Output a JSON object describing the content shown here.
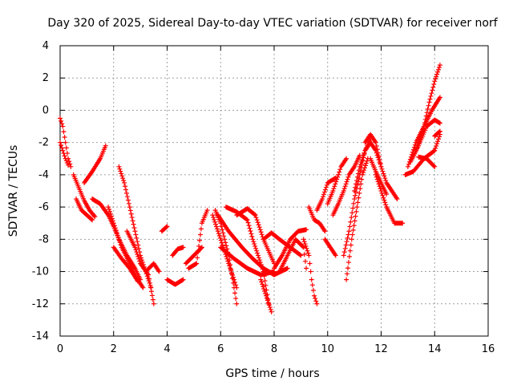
{
  "chart_data": {
    "type": "scatter",
    "title": "Day 320 of 2025, Sidereal Day-to-day VTEC variation (SDTVAR) for receiver norf",
    "xlabel": "GPS time / hours",
    "ylabel": "SDTVAR / TECUs",
    "xlim": [
      0,
      16
    ],
    "ylim": [
      -14,
      4
    ],
    "xticks": [
      "0",
      "2",
      "4",
      "6",
      "8",
      "10",
      "12",
      "14",
      "16"
    ],
    "yticks": [
      "4",
      "2",
      "0",
      "-2",
      "-4",
      "-6",
      "-8",
      "-10",
      "-12",
      "-14"
    ],
    "grid": true,
    "marker": "plus",
    "color": "#ff0000",
    "tracks": [
      [
        [
          0.0,
          -0.5
        ],
        [
          0.1,
          -1.0
        ],
        [
          0.2,
          -2.0
        ],
        [
          0.3,
          -3.0
        ],
        [
          0.4,
          -3.5
        ]
      ],
      [
        [
          0.0,
          -2.0
        ],
        [
          0.1,
          -2.5
        ],
        [
          0.2,
          -3.0
        ],
        [
          0.3,
          -3.4
        ]
      ],
      [
        [
          0.5,
          -4.0
        ],
        [
          0.7,
          -4.8
        ],
        [
          0.9,
          -5.6
        ],
        [
          1.1,
          -6.2
        ],
        [
          1.3,
          -6.6
        ]
      ],
      [
        [
          0.6,
          -5.5
        ],
        [
          0.8,
          -6.2
        ],
        [
          1.0,
          -6.5
        ],
        [
          1.2,
          -6.8
        ]
      ],
      [
        [
          0.9,
          -4.5
        ],
        [
          1.2,
          -3.8
        ],
        [
          1.5,
          -3.0
        ],
        [
          1.7,
          -2.2
        ]
      ],
      [
        [
          1.2,
          -5.5
        ],
        [
          1.5,
          -5.8
        ],
        [
          1.8,
          -6.5
        ],
        [
          2.0,
          -7.2
        ],
        [
          2.2,
          -8.0
        ],
        [
          2.5,
          -9.0
        ],
        [
          2.8,
          -9.8
        ],
        [
          3.0,
          -10.5
        ]
      ],
      [
        [
          1.8,
          -6.0
        ],
        [
          2.0,
          -7.0
        ],
        [
          2.3,
          -8.5
        ],
        [
          2.6,
          -9.5
        ],
        [
          2.9,
          -10.5
        ],
        [
          3.1,
          -11.0
        ]
      ],
      [
        [
          2.0,
          -8.5
        ],
        [
          2.3,
          -9.2
        ],
        [
          2.6,
          -9.8
        ],
        [
          2.9,
          -10.6
        ]
      ],
      [
        [
          2.2,
          -3.5
        ],
        [
          2.4,
          -4.5
        ],
        [
          2.6,
          -6.0
        ],
        [
          2.8,
          -7.5
        ],
        [
          3.0,
          -9.0
        ],
        [
          3.2,
          -10.0
        ],
        [
          3.4,
          -11.0
        ]
      ],
      [
        [
          2.5,
          -7.5
        ],
        [
          2.8,
          -8.5
        ],
        [
          3.0,
          -9.5
        ],
        [
          3.3,
          -10.2
        ],
        [
          3.5,
          -12.0
        ]
      ],
      [
        [
          3.2,
          -10.0
        ],
        [
          3.5,
          -9.5
        ],
        [
          3.7,
          -10.0
        ]
      ],
      [
        [
          3.8,
          -7.5
        ],
        [
          4.0,
          -7.2
        ]
      ],
      [
        [
          4.0,
          -10.5
        ],
        [
          4.3,
          -10.8
        ],
        [
          4.6,
          -10.5
        ]
      ],
      [
        [
          4.2,
          -9.0
        ],
        [
          4.4,
          -8.6
        ],
        [
          4.6,
          -8.5
        ]
      ],
      [
        [
          4.7,
          -9.5
        ],
        [
          5.0,
          -9.0
        ],
        [
          5.3,
          -8.5
        ]
      ],
      [
        [
          4.8,
          -9.8
        ],
        [
          5.1,
          -9.5
        ],
        [
          5.3,
          -7.0
        ],
        [
          5.5,
          -6.2
        ]
      ],
      [
        [
          5.7,
          -6.5
        ],
        [
          5.9,
          -7.5
        ],
        [
          6.1,
          -8.5
        ],
        [
          6.3,
          -9.5
        ],
        [
          6.5,
          -10.5
        ],
        [
          6.6,
          -11.0
        ]
      ],
      [
        [
          5.8,
          -6.2
        ],
        [
          6.0,
          -7.0
        ],
        [
          6.3,
          -9.0
        ],
        [
          6.5,
          -11.0
        ],
        [
          6.6,
          -12.0
        ]
      ],
      [
        [
          5.9,
          -6.5
        ],
        [
          6.3,
          -7.5
        ],
        [
          6.8,
          -8.5
        ],
        [
          7.2,
          -9.2
        ],
        [
          7.6,
          -9.8
        ],
        [
          8.0,
          -10.2
        ],
        [
          8.5,
          -9.8
        ]
      ],
      [
        [
          6.0,
          -8.5
        ],
        [
          6.5,
          -9.2
        ],
        [
          7.0,
          -9.8
        ],
        [
          7.5,
          -10.2
        ],
        [
          8.0,
          -10.0
        ]
      ],
      [
        [
          6.2,
          -6.0
        ],
        [
          6.6,
          -6.3
        ],
        [
          7.0,
          -6.8
        ],
        [
          7.2,
          -8.0
        ],
        [
          7.4,
          -9.0
        ],
        [
          7.6,
          -10.0
        ],
        [
          7.8,
          -12.0
        ]
      ],
      [
        [
          6.6,
          -6.5
        ],
        [
          7.0,
          -6.1
        ],
        [
          7.3,
          -6.5
        ],
        [
          7.6,
          -8.0
        ],
        [
          8.0,
          -9.5
        ]
      ],
      [
        [
          7.5,
          -10.5
        ],
        [
          7.7,
          -11.5
        ],
        [
          7.9,
          -12.5
        ]
      ],
      [
        [
          7.6,
          -8.0
        ],
        [
          7.9,
          -7.6
        ],
        [
          8.2,
          -8.0
        ],
        [
          8.6,
          -8.5
        ],
        [
          9.0,
          -9.0
        ]
      ],
      [
        [
          8.0,
          -9.8
        ],
        [
          8.3,
          -9.0
        ],
        [
          8.6,
          -8.0
        ],
        [
          8.9,
          -7.5
        ],
        [
          9.2,
          -7.4
        ]
      ],
      [
        [
          8.2,
          -10.0
        ],
        [
          8.5,
          -9.0
        ],
        [
          8.8,
          -8.0
        ],
        [
          9.1,
          -8.5
        ],
        [
          9.2,
          -9.8
        ]
      ],
      [
        [
          9.1,
          -8.0
        ],
        [
          9.3,
          -9.0
        ],
        [
          9.4,
          -10.5
        ],
        [
          9.5,
          -11.5
        ],
        [
          9.6,
          -12.0
        ]
      ],
      [
        [
          9.3,
          -6.0
        ],
        [
          9.5,
          -6.8
        ],
        [
          9.7,
          -7.0
        ],
        [
          9.9,
          -7.5
        ]
      ],
      [
        [
          9.6,
          -6.2
        ],
        [
          9.8,
          -5.5
        ],
        [
          10.0,
          -4.5
        ],
        [
          10.3,
          -4.2
        ]
      ],
      [
        [
          9.9,
          -8.0
        ],
        [
          10.1,
          -8.5
        ],
        [
          10.3,
          -9.0
        ]
      ],
      [
        [
          10.0,
          -5.8
        ],
        [
          10.2,
          -5.0
        ],
        [
          10.4,
          -4.0
        ],
        [
          10.5,
          -3.5
        ],
        [
          10.7,
          -3.0
        ]
      ],
      [
        [
          10.2,
          -6.5
        ],
        [
          10.4,
          -5.8
        ],
        [
          10.6,
          -5.0
        ],
        [
          10.8,
          -4.0
        ],
        [
          11.0,
          -3.5
        ],
        [
          11.2,
          -2.8
        ]
      ],
      [
        [
          10.6,
          -9.0
        ],
        [
          10.8,
          -7.5
        ],
        [
          11.0,
          -5.5
        ],
        [
          11.2,
          -4.0
        ],
        [
          11.4,
          -2.5
        ],
        [
          11.6,
          -1.8
        ]
      ],
      [
        [
          10.7,
          -10.5
        ],
        [
          10.9,
          -8.0
        ],
        [
          11.1,
          -6.0
        ],
        [
          11.3,
          -4.0
        ],
        [
          11.5,
          -3.0
        ]
      ],
      [
        [
          11.0,
          -5.0
        ],
        [
          11.2,
          -3.5
        ],
        [
          11.4,
          -2.5
        ],
        [
          11.6,
          -2.0
        ],
        [
          11.8,
          -2.5
        ],
        [
          12.0,
          -3.5
        ]
      ],
      [
        [
          11.4,
          -2.0
        ],
        [
          11.6,
          -1.5
        ],
        [
          11.8,
          -2.0
        ],
        [
          12.0,
          -3.5
        ],
        [
          12.2,
          -4.5
        ],
        [
          12.4,
          -5.0
        ],
        [
          12.6,
          -5.5
        ]
      ],
      [
        [
          11.6,
          -3.0
        ],
        [
          11.8,
          -3.8
        ],
        [
          12.0,
          -4.5
        ],
        [
          12.2,
          -5.2
        ]
      ],
      [
        [
          11.8,
          -4.0
        ],
        [
          12.0,
          -5.0
        ],
        [
          12.2,
          -6.0
        ],
        [
          12.5,
          -7.0
        ],
        [
          12.8,
          -7.0
        ]
      ],
      [
        [
          12.9,
          -4.0
        ],
        [
          13.2,
          -3.8
        ],
        [
          13.6,
          -3.0
        ],
        [
          14.0,
          -2.5
        ],
        [
          14.2,
          -1.5
        ]
      ],
      [
        [
          13.0,
          -3.5
        ],
        [
          13.3,
          -2.0
        ],
        [
          13.6,
          -1.0
        ],
        [
          13.9,
          0.0
        ],
        [
          14.2,
          0.8
        ]
      ],
      [
        [
          13.1,
          -3.2
        ],
        [
          13.4,
          -2.2
        ],
        [
          13.7,
          -1.0
        ],
        [
          14.0,
          -0.6
        ],
        [
          14.2,
          -0.8
        ]
      ],
      [
        [
          13.3,
          -2.5
        ],
        [
          13.6,
          -1.0
        ],
        [
          13.8,
          0.5
        ],
        [
          14.0,
          1.8
        ],
        [
          14.2,
          2.8
        ]
      ],
      [
        [
          13.4,
          -2.9
        ],
        [
          13.7,
          -3.0
        ],
        [
          14.0,
          -3.5
        ]
      ],
      [
        [
          14.0,
          -1.6
        ],
        [
          14.2,
          -1.3
        ]
      ]
    ]
  }
}
